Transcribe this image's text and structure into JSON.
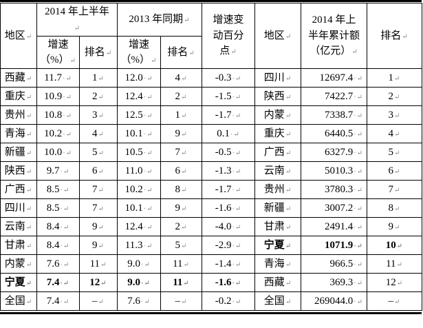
{
  "marks": {
    "cell_end": "↵",
    "dot": "·",
    "table_end": "⌝"
  },
  "table": {
    "header": {
      "region": "地区",
      "h2014": "2014 年上半年",
      "h2013": "2013 年同期",
      "change": "增速变动百分点",
      "growth": "增速（%）",
      "rank": "排名",
      "region2": "地区",
      "amount": "2014 年上半年累计额（亿元）",
      "rank2": "排名"
    },
    "rows": [
      {
        "cells": [
          "西藏",
          "11.7",
          "1",
          "12.0",
          "4",
          "-0.3",
          "四川",
          "12697.4",
          "1"
        ],
        "bold_left": false,
        "bold_right": false
      },
      {
        "cells": [
          "重庆",
          "10.9",
          "2",
          "12.4",
          "2",
          "-1.5",
          "陕西",
          "7422.7",
          "2"
        ],
        "bold_left": false,
        "bold_right": false
      },
      {
        "cells": [
          "贵州",
          "10.8",
          "3",
          "12.5",
          "1",
          "-1.7",
          "内蒙",
          "7338.7",
          "3"
        ],
        "bold_left": false,
        "bold_right": false
      },
      {
        "cells": [
          "青海",
          "10.2",
          "4",
          "10.1",
          "9",
          "0.1",
          "重庆",
          "6440.5",
          "4"
        ],
        "bold_left": false,
        "bold_right": false
      },
      {
        "cells": [
          "新疆",
          "10.0",
          "5",
          "10.5",
          "7",
          "-0.5",
          "广西",
          "6327.9",
          "5"
        ],
        "bold_left": false,
        "bold_right": false
      },
      {
        "cells": [
          "陕西",
          "9.7",
          "6",
          "11.0",
          "6",
          "-1.3",
          "云南",
          "5010.3",
          "6"
        ],
        "bold_left": false,
        "bold_right": false
      },
      {
        "cells": [
          "广西",
          "8.5",
          "7",
          "10.2",
          "8",
          "-1.7",
          "贵州",
          "3780.3",
          "7"
        ],
        "bold_left": false,
        "bold_right": false
      },
      {
        "cells": [
          "四川",
          "8.5",
          "7",
          "10.1",
          "9",
          "-1.6",
          "新疆",
          "3007.2",
          "8"
        ],
        "bold_left": false,
        "bold_right": false
      },
      {
        "cells": [
          "云南",
          "8.4",
          "9",
          "12.4",
          "2",
          "-4.0",
          "甘肃",
          "2491.4",
          "9"
        ],
        "bold_left": false,
        "bold_right": false
      },
      {
        "cells": [
          "甘肃",
          "8.4",
          "9",
          "11.3",
          "5",
          "-2.9",
          "宁夏",
          "1071.9",
          "10"
        ],
        "bold_left": false,
        "bold_right": true
      },
      {
        "cells": [
          "内蒙",
          "7.6",
          "11",
          "9.0",
          "11",
          "-1.4",
          "青海",
          "966.5",
          "11"
        ],
        "bold_left": false,
        "bold_right": false
      },
      {
        "cells": [
          "宁夏",
          "7.4",
          "12",
          "9.0",
          "11",
          "-1.6",
          "西藏",
          "369.3",
          "12"
        ],
        "bold_left": true,
        "bold_right": false
      },
      {
        "cells": [
          "全国",
          "7.4",
          "–",
          "7.6",
          "–",
          "-0.2",
          "全国",
          "269044.0",
          "–"
        ],
        "bold_left": false,
        "bold_right": false
      }
    ]
  }
}
